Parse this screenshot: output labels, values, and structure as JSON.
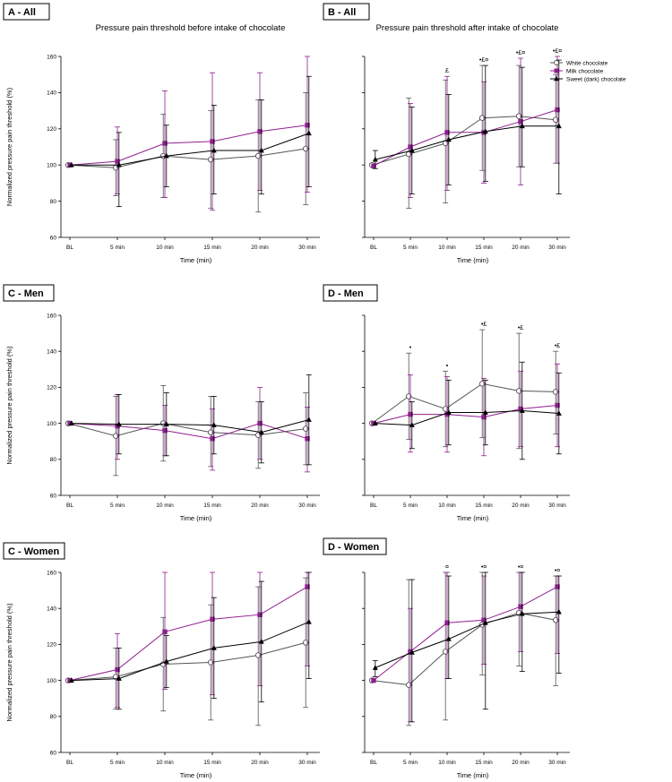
{
  "legend": [
    {
      "name": "White chocolate",
      "color": "#555555",
      "marker": "circle-open"
    },
    {
      "name": "Milk chocolate",
      "color": "#8e1f8e",
      "marker": "square-filled"
    },
    {
      "name": "Sweet (dark) chocolate",
      "color": "#000000",
      "marker": "triangle-filled"
    }
  ],
  "chart_data": [
    {
      "type": "line",
      "id": "A-All",
      "label": "A - All",
      "title": "Pressure pain threshold before intake of chocolate",
      "xlabel": "Time (min)",
      "ylabel": "Normalized pressure pain threshold (%)",
      "categories": [
        "BL",
        "5 min",
        "10 min",
        "15 min",
        "20 min",
        "30 min"
      ],
      "ylim": [
        60,
        160
      ],
      "yticks": [
        60,
        80,
        100,
        120,
        140,
        160
      ],
      "series": [
        {
          "name": "White chocolate",
          "values": [
            100,
            98.5,
            105,
            103,
            105,
            109
          ],
          "err_low": [
            100,
            83,
            82,
            76,
            74,
            78
          ],
          "err_high": [
            100,
            114,
            128,
            130,
            136,
            140
          ]
        },
        {
          "name": "Milk chocolate",
          "values": [
            100,
            102,
            112,
            113,
            118.5,
            122
          ],
          "err_low": [
            100,
            84,
            82,
            75,
            86,
            85
          ],
          "err_high": [
            100,
            121,
            141,
            151,
            151,
            160
          ]
        },
        {
          "name": "Sweet (dark) chocolate",
          "values": [
            100,
            100,
            105,
            108,
            108,
            117.5
          ],
          "err_low": [
            100,
            77,
            88,
            84,
            84,
            88
          ],
          "err_high": [
            100,
            118,
            122,
            133,
            136,
            149
          ]
        }
      ],
      "annotations": []
    },
    {
      "type": "line",
      "id": "B-All",
      "label": "B - All",
      "title": "Pressure pain threshold after intake of chocolate",
      "xlabel": "Time (min)",
      "ylabel": "",
      "categories": [
        "BL",
        "5 min",
        "10 min",
        "15 min",
        "20 min",
        "30 min"
      ],
      "ylim": [
        60,
        160
      ],
      "yticks": [],
      "series": [
        {
          "name": "White chocolate",
          "values": [
            100,
            106,
            112,
            126,
            127,
            125
          ],
          "err_low": [
            100,
            76,
            79,
            97,
            99,
            101
          ],
          "err_high": [
            100,
            137,
            147,
            155,
            155,
            150
          ]
        },
        {
          "name": "Milk chocolate",
          "values": [
            99.5,
            110,
            118,
            118,
            124,
            130.5
          ],
          "err_low": [
            99.5,
            82,
            86,
            90,
            89,
            101
          ],
          "err_high": [
            99.5,
            134,
            149,
            146,
            159,
            160
          ]
        },
        {
          "name": "Sweet (dark) chocolate",
          "values": [
            103,
            108,
            114,
            118.5,
            121.5,
            121.5
          ],
          "err_low": [
            98,
            84,
            89,
            91,
            99,
            84
          ],
          "err_high": [
            108,
            132,
            139,
            155,
            154,
            158
          ]
        }
      ],
      "annotations": [
        {
          "category": "10 min",
          "text": "£"
        },
        {
          "category": "15 min",
          "text": "•£¤"
        },
        {
          "category": "20 min",
          "text": "•£¤"
        },
        {
          "category": "30 min",
          "text": "•£¤"
        }
      ]
    },
    {
      "type": "line",
      "id": "C-Men",
      "label": "C - Men",
      "title": "",
      "xlabel": "Time (min)",
      "ylabel": "Normalized pressure pain threshold (%)",
      "categories": [
        "BL",
        "5 min",
        "10 min",
        "15 min",
        "20 min",
        "30 min"
      ],
      "ylim": [
        60,
        160
      ],
      "yticks": [
        60,
        80,
        100,
        120,
        140,
        160
      ],
      "series": [
        {
          "name": "White chocolate",
          "values": [
            100,
            93,
            100,
            95,
            93.5,
            97
          ],
          "err_low": [
            100,
            71,
            79,
            76,
            75,
            77
          ],
          "err_high": [
            100,
            115,
            121,
            115,
            112,
            117
          ]
        },
        {
          "name": "Milk chocolate",
          "values": [
            100,
            98.5,
            96,
            91.5,
            100,
            91.5
          ],
          "err_low": [
            100,
            80,
            82,
            74,
            80,
            73
          ],
          "err_high": [
            100,
            116,
            110,
            108,
            120,
            109
          ]
        },
        {
          "name": "Sweet (dark) chocolate",
          "values": [
            100,
            99.5,
            99.5,
            99,
            95,
            102
          ],
          "err_low": [
            100,
            83,
            82,
            83,
            78,
            77
          ],
          "err_high": [
            100,
            116,
            117,
            115,
            112,
            127
          ]
        }
      ],
      "annotations": []
    },
    {
      "type": "line",
      "id": "D-Men",
      "label": "D - Men",
      "title": "",
      "xlabel": "Time (min)",
      "ylabel": "",
      "categories": [
        "BL",
        "5 min",
        "10 min",
        "15 min",
        "20 min",
        "30 min"
      ],
      "ylim": [
        60,
        160
      ],
      "yticks": [],
      "series": [
        {
          "name": "White chocolate",
          "values": [
            100,
            115,
            108,
            122,
            118,
            117.5
          ],
          "err_low": [
            100,
            91,
            87,
            92,
            86,
            94
          ],
          "err_high": [
            100,
            139,
            129,
            152,
            150,
            140
          ]
        },
        {
          "name": "Milk chocolate",
          "values": [
            100,
            105,
            105,
            103.5,
            108,
            110
          ],
          "err_low": [
            100,
            84,
            84,
            82,
            87,
            87
          ],
          "err_high": [
            100,
            127,
            126,
            125,
            129,
            133
          ]
        },
        {
          "name": "Sweet (dark) chocolate",
          "values": [
            100,
            99,
            106,
            106,
            107,
            105.5
          ],
          "err_low": [
            100,
            86,
            88,
            88,
            80,
            83
          ],
          "err_high": [
            100,
            112,
            124,
            124,
            134,
            128
          ]
        }
      ],
      "annotations": [
        {
          "category": "5 min",
          "text": "•"
        },
        {
          "category": "10 min",
          "text": "•"
        },
        {
          "category": "15 min",
          "text": "•£"
        },
        {
          "category": "20 min",
          "text": "•£"
        },
        {
          "category": "30 min",
          "text": "•£"
        }
      ]
    },
    {
      "type": "line",
      "id": "C-Women",
      "label": "C - Women",
      "title": "",
      "xlabel": "Time (min)",
      "ylabel": "Normalized pressure pain threshold (%)",
      "categories": [
        "BL",
        "5 min",
        "10 min",
        "15 min",
        "20 min",
        "30 min"
      ],
      "ylim": [
        60,
        160
      ],
      "yticks": [
        60,
        80,
        100,
        120,
        140,
        160
      ],
      "series": [
        {
          "name": "White chocolate",
          "values": [
            100,
            102,
            109,
            110,
            114,
            121
          ],
          "err_low": [
            100,
            84,
            83,
            78,
            75,
            85
          ],
          "err_high": [
            100,
            118,
            135,
            142,
            152,
            157
          ]
        },
        {
          "name": "Milk chocolate",
          "values": [
            100,
            106,
            127,
            134,
            136.5,
            152
          ],
          "err_low": [
            100,
            85,
            95,
            92,
            97,
            108
          ],
          "err_high": [
            100,
            126,
            160,
            160,
            160,
            160
          ]
        },
        {
          "name": "Sweet (dark) chocolate",
          "values": [
            100,
            101,
            110.5,
            118,
            121.5,
            132.5
          ],
          "err_low": [
            100,
            84,
            96,
            90,
            88,
            101
          ],
          "err_high": [
            100,
            118,
            125,
            146,
            155,
            160
          ]
        }
      ],
      "annotations": []
    },
    {
      "type": "line",
      "id": "D-Women",
      "label": "D - Women",
      "title": "",
      "xlabel": "Time (min)",
      "ylabel": "",
      "categories": [
        "BL",
        "5 min",
        "10 min",
        "15 min",
        "20 min",
        "30 min"
      ],
      "ylim": [
        60,
        160
      ],
      "yticks": [],
      "series": [
        {
          "name": "White chocolate",
          "values": [
            100,
            97.5,
            116,
            131,
            137.5,
            133.5
          ],
          "err_low": [
            100,
            75,
            78,
            103,
            108,
            97
          ],
          "err_high": [
            100,
            156,
            160,
            160,
            160,
            158
          ]
        },
        {
          "name": "Milk chocolate",
          "values": [
            100,
            116,
            132,
            133.5,
            141,
            152
          ],
          "err_low": [
            100,
            77,
            101,
            109,
            116,
            115
          ],
          "err_high": [
            100,
            140,
            160,
            158,
            160,
            158
          ]
        },
        {
          "name": "Sweet (dark) chocolate",
          "values": [
            107,
            115.5,
            123,
            132,
            137,
            138
          ],
          "err_low": [
            102,
            77,
            101,
            84,
            105,
            104
          ],
          "err_high": [
            111,
            156,
            158,
            160,
            160,
            158
          ]
        }
      ],
      "annotations": [
        {
          "category": "10 min",
          "text": "¤"
        },
        {
          "category": "15 min",
          "text": "•¤"
        },
        {
          "category": "20 min",
          "text": "•¤"
        },
        {
          "category": "30 min",
          "text": "•¤"
        }
      ]
    }
  ]
}
